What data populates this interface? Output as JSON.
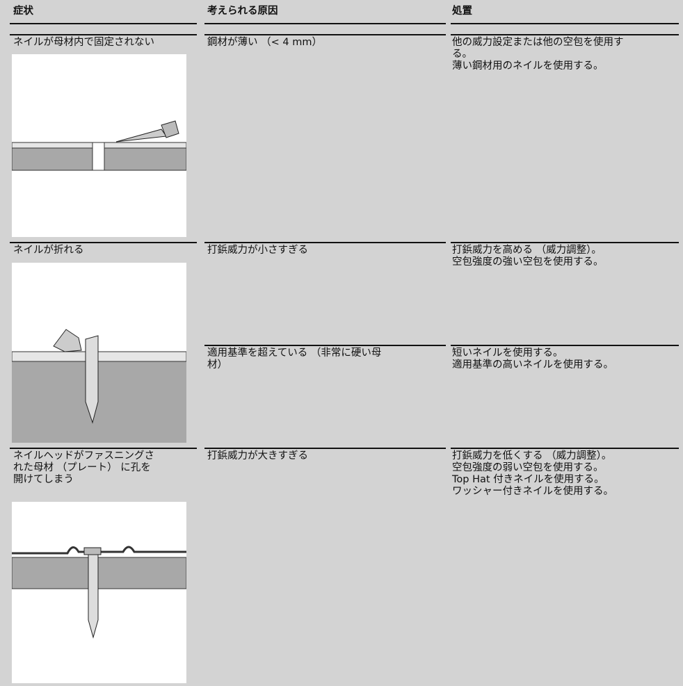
{
  "table": {
    "header": [
      "症状",
      "考えられる原因",
      "処置"
    ],
    "rows": [
      {
        "symptom": [
          "ネイルが母材内で固定されない"
        ],
        "causes": [
          {
            "cause": [
              "鋼材が薄い （< 4 mm）"
            ],
            "remedy": [
              "他の威力設定または他の空包を使用す",
              "る。",
              "薄い鋼材用のネイルを使用する。"
            ]
          }
        ]
      },
      {
        "symptom": [
          "ネイルが折れる"
        ],
        "causes": [
          {
            "cause": [
              "打鋲威力が小さすぎる"
            ],
            "remedy": [
              "打鋲威力を高める （威力調整）。",
              "空包強度の強い空包を使用する。"
            ]
          },
          {
            "cause": [
              "適用基準を超えている （非常に硬い母",
              "材）"
            ],
            "remedy": [
              "短いネイルを使用する。",
              "適用基準の高いネイルを使用する。"
            ]
          }
        ]
      },
      {
        "symptom": [
          "ネイルヘッドがファスニングさ",
          "れた母材 （プレート） に孔を",
          "開けてしまう"
        ],
        "causes": [
          {
            "cause": [
              "打鋲威力が大きすぎる"
            ],
            "remedy": [
              "打鋲威力を低くする （威力調整）。",
              "空包強度の弱い空包を使用する。",
              "Top Hat 付きネイルを使用する。",
              "ワッシャー付きネイルを使用する。"
            ]
          }
        ]
      }
    ]
  }
}
